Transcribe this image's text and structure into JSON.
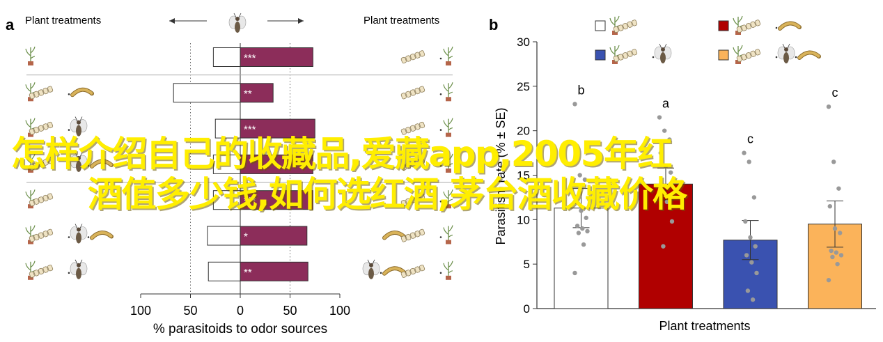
{
  "overlay": {
    "line1": "怎样介绍自己的收藏品,爱藏app,2005年红",
    "line2": "酒值多少钱,如何选红酒,茅台酒收藏价格"
  },
  "colors": {
    "bar_a": "#8c2d5a",
    "panel_b": [
      "#ffffff",
      "#b00000",
      "#3a52b0",
      "#fbb35a"
    ],
    "dot": "#999999",
    "axis": "#333333"
  },
  "chart_data": [
    {
      "panel_label": "a",
      "type": "bar",
      "orientation": "diverging-horizontal",
      "left_title": "Plant treatments",
      "right_title": "Plant treatments",
      "xlabel": "% parasitoids to odor sources",
      "xticks": [
        100,
        50,
        0,
        50,
        100
      ],
      "xlim": [
        -100,
        100
      ],
      "grid_lines_at": [
        -50,
        50
      ],
      "rows": [
        {
          "left_icons": [
            "plant-icon"
          ],
          "right_icons": [
            "eggs-icon",
            "plant-icon"
          ],
          "left_value": 27,
          "right_value": 73,
          "sig": "***"
        },
        {
          "left_icons": [
            "plant-icon",
            "eggs-icon",
            "larva-icon"
          ],
          "right_icons": [
            "eggs-icon",
            "plant-icon"
          ],
          "left_value": 67,
          "right_value": 33,
          "sig": "**"
        },
        {
          "left_icons": [
            "plant-icon",
            "eggs-icon",
            "wasp-icon"
          ],
          "right_icons": [
            "eggs-icon",
            "plant-icon"
          ],
          "left_value": 25,
          "right_value": 75,
          "sig": "***"
        },
        {
          "left_icons": [
            "plant-icon",
            "eggs-icon",
            "wasp-icon",
            "larva-icon"
          ],
          "right_icons": [
            "eggs-icon",
            "plant-icon"
          ],
          "left_value": 27,
          "right_value": 73,
          "sig": ""
        },
        {
          "left_icons": [
            "plant-icon",
            "eggs-icon"
          ],
          "right_icons": [
            "eggs-icon",
            "plant-icon"
          ],
          "left_value": 27,
          "right_value": 73,
          "sig": "***"
        },
        {
          "left_icons": [
            "plant-icon",
            "eggs-icon",
            "wasp-icon",
            "larva-icon"
          ],
          "right_icons": [
            "larva-icon",
            "eggs-icon",
            "plant-icon"
          ],
          "left_value": 33,
          "right_value": 67,
          "sig": "*"
        },
        {
          "left_icons": [
            "plant-icon",
            "eggs-icon",
            "wasp-icon"
          ],
          "right_icons": [
            "wasp-icon",
            "larva-icon",
            "eggs-icon",
            "plant-icon"
          ],
          "left_value": 32,
          "right_value": 68,
          "sig": "**"
        }
      ],
      "separator_after_rows": [
        0,
        3
      ]
    },
    {
      "panel_label": "b",
      "type": "bar",
      "xlabel": "Plant treatments",
      "ylabel": "Parasitism rate (% ± SE)",
      "ylim": [
        0,
        30
      ],
      "yticks": [
        0,
        5,
        10,
        15,
        20,
        25,
        30
      ],
      "legend": [
        {
          "icons": [
            "plant-icon",
            "eggs-icon"
          ],
          "color": "#ffffff"
        },
        {
          "icons": [
            "plant-icon",
            "eggs-icon",
            "larva-icon"
          ],
          "color": "#b00000"
        },
        {
          "icons": [
            "plant-icon",
            "eggs-icon",
            "wasp-icon"
          ],
          "color": "#3a52b0"
        },
        {
          "icons": [
            "plant-icon",
            "eggs-icon",
            "wasp-icon",
            "larva-icon"
          ],
          "color": "#fbb35a"
        }
      ],
      "bars": [
        {
          "value": 11.3,
          "se": 2.2,
          "letter": "b",
          "points": [
            23,
            15,
            14.5,
            12,
            11,
            10.2,
            9.3,
            9.0,
            8.7,
            8.5,
            7.2,
            4.0
          ]
        },
        {
          "value": 14.0,
          "se": 1.8,
          "letter": "a",
          "points": [
            21.5,
            20,
            19,
            17.5,
            16,
            15.3,
            13.3,
            12,
            9.8,
            7.0
          ]
        },
        {
          "value": 7.7,
          "se": 2.2,
          "letter": "c",
          "points": [
            17.5,
            16.5,
            12.5,
            9.8,
            8.0,
            7.0,
            6.0,
            5.2,
            4.0,
            2.0,
            1.0
          ]
        },
        {
          "value": 9.5,
          "se": 2.6,
          "letter": "c",
          "points": [
            22.7,
            16.5,
            13.5,
            11.5,
            9.0,
            8.5,
            6.5,
            6.3,
            6.0,
            5.8,
            5.0,
            3.2
          ]
        }
      ]
    }
  ]
}
